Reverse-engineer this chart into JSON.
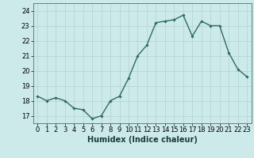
{
  "x": [
    0,
    1,
    2,
    3,
    4,
    5,
    6,
    7,
    8,
    9,
    10,
    11,
    12,
    13,
    14,
    15,
    16,
    17,
    18,
    19,
    20,
    21,
    22,
    23
  ],
  "y": [
    18.3,
    18.0,
    18.2,
    18.0,
    17.5,
    17.4,
    16.8,
    17.0,
    18.0,
    18.3,
    19.5,
    21.0,
    21.7,
    23.2,
    23.3,
    23.4,
    23.7,
    22.3,
    23.3,
    23.0,
    23.0,
    21.2,
    20.1,
    19.6
  ],
  "line_color": "#2e6b5e",
  "marker": "D",
  "markersize": 1.8,
  "linewidth": 1.0,
  "xlabel": "Humidex (Indice chaleur)",
  "xlabel_fontsize": 7,
  "ylabel_ticks": [
    17,
    18,
    19,
    20,
    21,
    22,
    23,
    24
  ],
  "xtick_labels": [
    "0",
    "1",
    "2",
    "3",
    "4",
    "5",
    "6",
    "7",
    "8",
    "9",
    "10",
    "11",
    "12",
    "13",
    "14",
    "15",
    "16",
    "17",
    "18",
    "19",
    "20",
    "21",
    "22",
    "23"
  ],
  "ylim": [
    16.5,
    24.5
  ],
  "xlim": [
    -0.5,
    23.5
  ],
  "bg_color": "#cdeaea",
  "grid_color": "#b8d4d4",
  "tick_fontsize": 6,
  "spine_color": "#3a7a6a"
}
